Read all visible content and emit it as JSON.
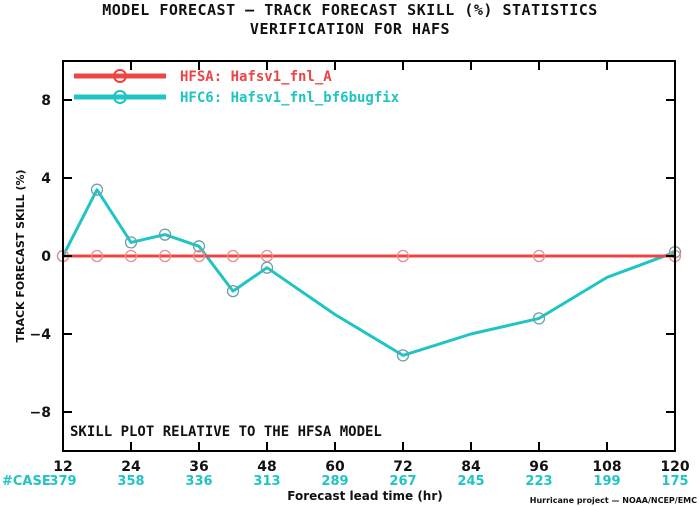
{
  "title_lines": [
    "MODEL FORECAST — TRACK FORECAST SKILL (%) STATISTICS",
    "VERIFICATION FOR HAFS"
  ],
  "chart_data": {
    "type": "line",
    "xlabel": "Forecast lead time (hr)",
    "ylabel": "TRACK FORECAST SKILL (%)",
    "xlim": [
      12,
      120
    ],
    "ylim": [
      -10,
      10
    ],
    "x_ticks": [
      12,
      24,
      36,
      48,
      60,
      72,
      84,
      96,
      108,
      120
    ],
    "y_ticks": [
      -8,
      -4,
      0,
      4,
      8
    ],
    "x_tick_labels": [
      "12",
      "24",
      "36",
      "48",
      "60",
      "72",
      "84",
      "96",
      "108",
      "120"
    ],
    "y_tick_labels": [
      "−8",
      "−4",
      "0",
      "4",
      "8"
    ],
    "annotation": "SKILL PLOT RELATIVE TO THE HFSA MODEL",
    "legend_position": "top-left",
    "case_label": "#CASE",
    "case_counts": [
      {
        "x": 12,
        "n": "379"
      },
      {
        "x": 24,
        "n": "358"
      },
      {
        "x": 36,
        "n": "336"
      },
      {
        "x": 48,
        "n": "313"
      },
      {
        "x": 60,
        "n": "289"
      },
      {
        "x": 72,
        "n": "267"
      },
      {
        "x": 84,
        "n": "245"
      },
      {
        "x": 96,
        "n": "223"
      },
      {
        "x": 108,
        "n": "199"
      },
      {
        "x": 120,
        "n": "175"
      }
    ],
    "series": [
      {
        "name": "HFSA: Hafsv1_fnl_A",
        "color": "#ee4444",
        "x": [
          12,
          18,
          24,
          30,
          36,
          42,
          48,
          72,
          96,
          120
        ],
        "y": [
          0,
          0,
          0,
          0,
          0,
          0,
          0,
          0,
          0,
          0
        ],
        "markers": [
          12,
          18,
          24,
          30,
          36,
          42,
          48,
          72,
          96,
          120
        ]
      },
      {
        "name": "HFC6: Hafsv1_fnl_bf6bugfix",
        "color": "#20c4c4",
        "x": [
          12,
          18,
          24,
          30,
          36,
          42,
          48,
          60,
          72,
          84,
          96,
          108,
          120
        ],
        "y": [
          0,
          3.4,
          0.7,
          1.1,
          0.5,
          -1.8,
          -0.6,
          -3.0,
          -5.1,
          -4.0,
          -3.2,
          -1.1,
          0.2
        ],
        "markers": [
          12,
          18,
          24,
          30,
          36,
          42,
          48,
          72,
          96,
          120
        ]
      }
    ]
  },
  "credit": "Hurricane project — NOAA/NCEP/EMC"
}
